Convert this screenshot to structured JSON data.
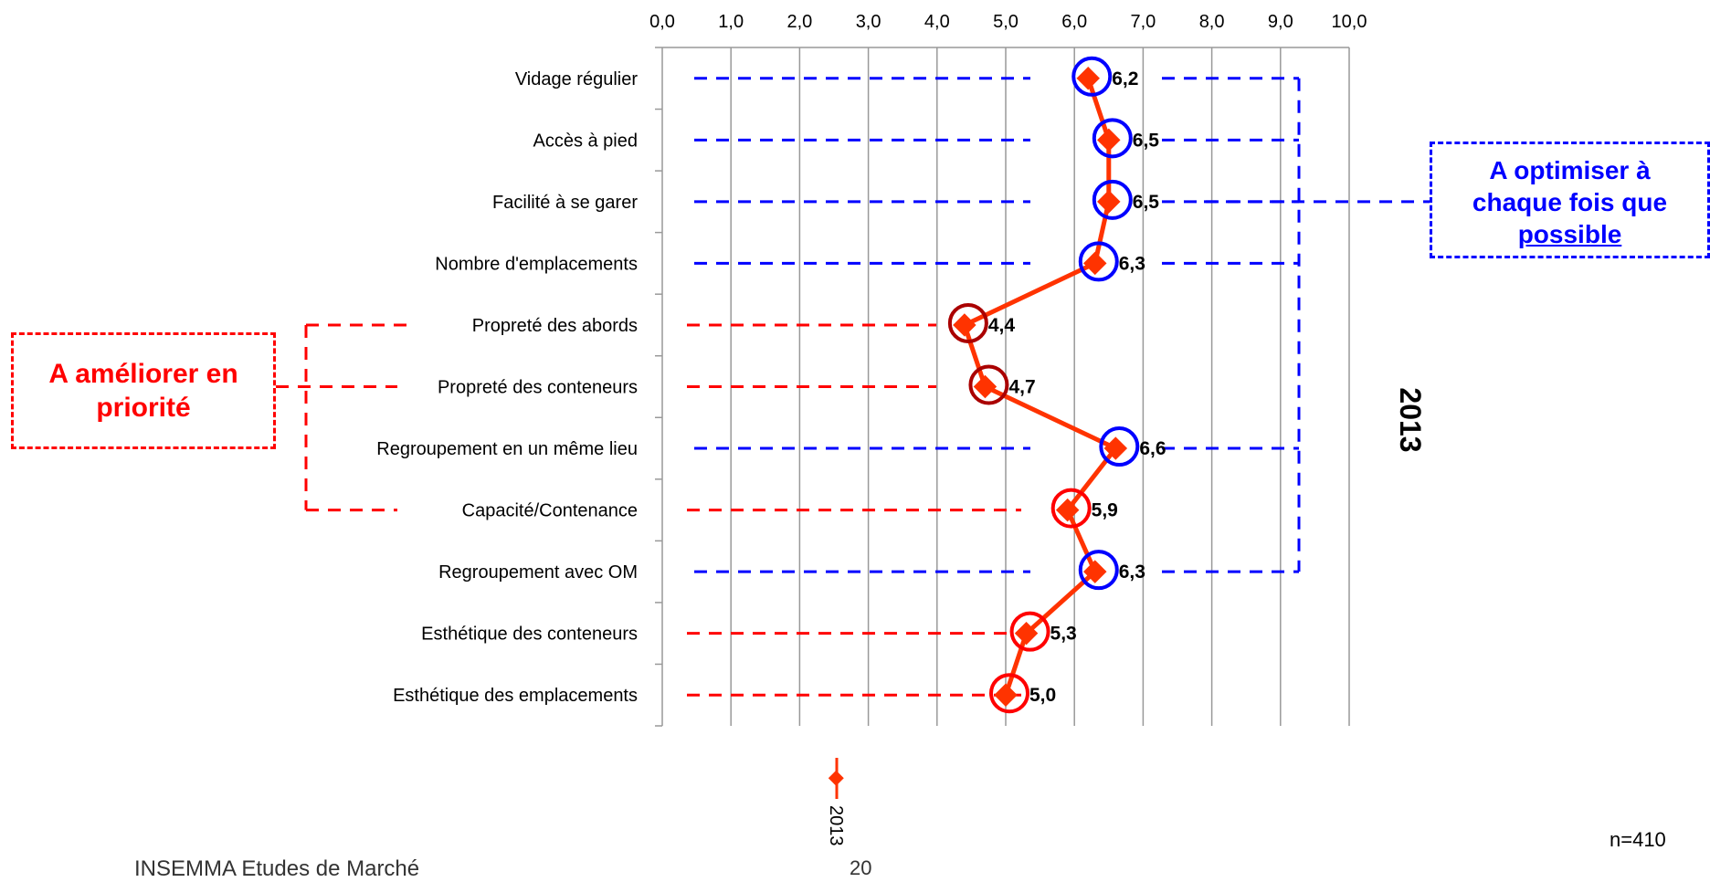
{
  "chart_data": {
    "type": "line",
    "orientation": "horizontal",
    "categories": [
      "Vidage régulier",
      "Accès à pied",
      "Facilité à se garer",
      "Nombre d'emplacements",
      "Propreté des abords",
      "Propreté des conteneurs",
      "Regroupement en un même lieu",
      "Capacité/Contenance",
      "Regroupement avec OM",
      "Esthétique des conteneurs",
      "Esthétique des emplacements"
    ],
    "series": [
      {
        "name": "2013",
        "values": [
          6.2,
          6.5,
          6.5,
          6.3,
          4.4,
          4.7,
          6.6,
          5.9,
          6.3,
          5.3,
          5.0
        ],
        "data_labels": [
          "6,2",
          "6,5",
          "6,5",
          "6,3",
          "4,4",
          "4,7",
          "6,6",
          "5,9",
          "6,3",
          "5,3",
          "5,0"
        ],
        "color": "#ff3300"
      }
    ],
    "xlim": [
      0,
      10
    ],
    "x_ticks": [
      "0,0",
      "1,0",
      "2,0",
      "3,0",
      "4,0",
      "5,0",
      "6,0",
      "7,0",
      "8,0",
      "9,0",
      "10,0"
    ],
    "x_tick_values": [
      0,
      1,
      2,
      3,
      4,
      5,
      6,
      7,
      8,
      9,
      10
    ],
    "x_axis_position": "top",
    "grid": "vertical",
    "legend": {
      "placement": "bottom-center",
      "label": "2013"
    },
    "year_label": "2013",
    "circle_group": [
      "blue",
      "blue",
      "blue",
      "blue",
      "darkred",
      "darkred",
      "blue",
      "red",
      "blue",
      "red",
      "red"
    ],
    "colors": {
      "blue": "#0000ff",
      "red": "#ff0000",
      "darkred": "#aa0000",
      "line": "#ff3300",
      "grid": "#999999"
    }
  },
  "callouts": {
    "improve": {
      "line1": "A améliorer en",
      "line2": "priorité"
    },
    "optimize": {
      "line1": "A optimiser à",
      "line2": "chaque fois que",
      "line3": "possible"
    }
  },
  "footer": {
    "company": "INSEMMA Etudes de Marché",
    "page": "20",
    "sample": "n=410"
  }
}
